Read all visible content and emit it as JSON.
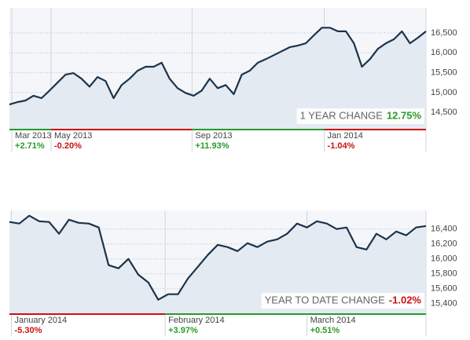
{
  "chart_data": [
    {
      "type": "line",
      "color": "#1c3349",
      "fill": "#e4eaf2",
      "values": [
        14700,
        14760,
        14800,
        14920,
        14860,
        15050,
        15250,
        15450,
        15490,
        15350,
        15150,
        15390,
        15290,
        14860,
        15190,
        15350,
        15550,
        15650,
        15650,
        15750,
        15350,
        15110,
        14990,
        14920,
        15050,
        15350,
        15110,
        15190,
        14960,
        15450,
        15550,
        15750,
        15840,
        15940,
        16040,
        16140,
        16180,
        16240,
        16440,
        16630,
        16630,
        16540,
        16540,
        16240,
        15650,
        15840,
        16100,
        16240,
        16340,
        16540,
        16240,
        16380,
        16540
      ],
      "xlim": [
        0,
        52
      ],
      "ylim": [
        14070,
        17130
      ],
      "yticks": [
        {
          "value": 14500,
          "label": "14,500"
        },
        {
          "value": 15000,
          "label": "15,000"
        },
        {
          "value": 15500,
          "label": "15,500"
        },
        {
          "value": 16000,
          "label": "16,000"
        },
        {
          "value": 16500,
          "label": "16,500"
        }
      ],
      "xticks": [
        {
          "value": 0.3,
          "label": "Mar 2013"
        },
        {
          "value": 5.2,
          "label": "May 2013"
        },
        {
          "value": 22.8,
          "label": "Sep 2013"
        },
        {
          "value": 39.3,
          "label": "Jan 2014"
        }
      ],
      "changes": [
        "+2.71%",
        "-0.20%",
        "+11.93%",
        "-1.04%"
      ],
      "change_colors": [
        "#2a9a2a",
        "#cc1111",
        "#2a9a2a",
        "#cc1111"
      ],
      "annotation": "1 YEAR CHANGE",
      "annotation_value": "12.75%",
      "annotation_color": "#2a9a2a"
    },
    {
      "type": "line",
      "color": "#1c3349",
      "fill": "#e4eaf2",
      "values": [
        16495,
        16474,
        16579,
        16505,
        16495,
        16337,
        16526,
        16484,
        16474,
        16421,
        15916,
        15874,
        16000,
        15789,
        15684,
        15453,
        15526,
        15526,
        15737,
        15895,
        16053,
        16189,
        16158,
        16105,
        16211,
        16158,
        16232,
        16263,
        16337,
        16474,
        16421,
        16505,
        16474,
        16400,
        16421,
        16158,
        16126,
        16337,
        16263,
        16368,
        16316,
        16421,
        16442
      ],
      "xlim": [
        0,
        42
      ],
      "ylim": [
        15260,
        16650
      ],
      "yticks": [
        {
          "value": 15400,
          "label": "15,400"
        },
        {
          "value": 15600,
          "label": "15,600"
        },
        {
          "value": 15800,
          "label": "15,800"
        },
        {
          "value": 16000,
          "label": "16,000"
        },
        {
          "value": 16200,
          "label": "16,200"
        },
        {
          "value": 16400,
          "label": "16,400"
        }
      ],
      "xticks": [
        {
          "value": 0.2,
          "label": "January 2014"
        },
        {
          "value": 15.7,
          "label": "February 2014"
        },
        {
          "value": 30.0,
          "label": "March 2014"
        }
      ],
      "changes": [
        "-5.30%",
        "+3.97%",
        "+0.51%"
      ],
      "change_colors": [
        "#cc1111",
        "#2a9a2a",
        "#2a9a2a"
      ],
      "annotation": "YEAR TO DATE CHANGE",
      "annotation_value": "-1.02%",
      "annotation_color": "#cc1111"
    }
  ]
}
